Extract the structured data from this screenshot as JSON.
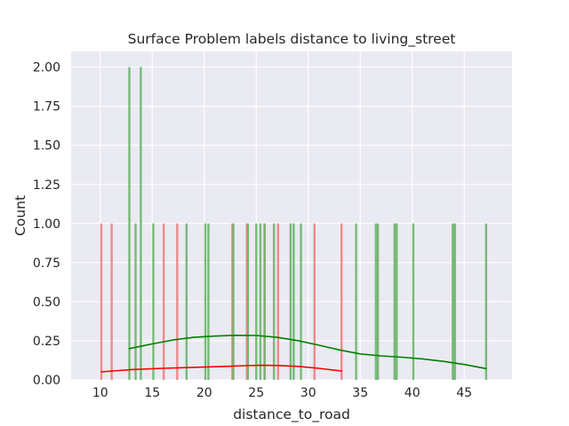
{
  "chart_data": {
    "type": "histogram",
    "title": "Surface Problem labels distance to living_street",
    "xlabel": "distance_to_road",
    "ylabel": "Count",
    "xlim": [
      7.2,
      49.6
    ],
    "ylim": [
      0,
      2.1
    ],
    "x_ticks": [
      "10",
      "15",
      "20",
      "25",
      "30",
      "35",
      "40",
      "45"
    ],
    "y_ticks": [
      "0.00",
      "0.25",
      "0.50",
      "0.75",
      "1.00",
      "1.25",
      "1.50",
      "1.75",
      "2.00"
    ],
    "grid": true,
    "legend": "none",
    "series": [
      {
        "color": "#e8575a",
        "bar_color": "#f08080",
        "bars": [
          {
            "x": 10.1,
            "count": 1
          },
          {
            "x": 11.1,
            "count": 1
          },
          {
            "x": 16.1,
            "count": 1
          },
          {
            "x": 17.4,
            "count": 1
          },
          {
            "x": 22.7,
            "count": 1
          },
          {
            "x": 24.1,
            "count": 1
          },
          {
            "x": 25.8,
            "count": 1
          },
          {
            "x": 27.1,
            "count": 1
          },
          {
            "x": 30.6,
            "count": 1
          },
          {
            "x": 33.2,
            "count": 1
          }
        ],
        "kde_color": "#ff0000",
        "kde": [
          [
            10.1,
            0.051
          ],
          [
            13,
            0.066
          ],
          [
            16,
            0.074
          ],
          [
            19,
            0.08
          ],
          [
            22,
            0.086
          ],
          [
            24,
            0.091
          ],
          [
            25.5,
            0.093
          ],
          [
            27,
            0.092
          ],
          [
            29,
            0.086
          ],
          [
            31,
            0.074
          ],
          [
            33.2,
            0.056
          ]
        ]
      },
      {
        "color": "#4caf50",
        "bar_color": "#6ab46a",
        "bars": [
          {
            "x": 12.8,
            "count": 2
          },
          {
            "x": 13.4,
            "count": 1
          },
          {
            "x": 13.9,
            "count": 2
          },
          {
            "x": 15.1,
            "count": 1
          },
          {
            "x": 18.3,
            "count": 1
          },
          {
            "x": 20.1,
            "count": 1
          },
          {
            "x": 20.4,
            "count": 1
          },
          {
            "x": 22.8,
            "count": 1
          },
          {
            "x": 24.2,
            "count": 1
          },
          {
            "x": 25.0,
            "count": 1
          },
          {
            "x": 25.4,
            "count": 1
          },
          {
            "x": 25.8,
            "count": 1
          },
          {
            "x": 26.7,
            "count": 1
          },
          {
            "x": 28.3,
            "count": 1
          },
          {
            "x": 28.6,
            "count": 1
          },
          {
            "x": 29.3,
            "count": 1
          },
          {
            "x": 34.6,
            "count": 1
          },
          {
            "x": 36.5,
            "count": 1
          },
          {
            "x": 36.7,
            "count": 1
          },
          {
            "x": 38.3,
            "count": 1
          },
          {
            "x": 38.5,
            "count": 1
          },
          {
            "x": 40.1,
            "count": 1
          },
          {
            "x": 43.9,
            "count": 1
          },
          {
            "x": 44.1,
            "count": 1
          },
          {
            "x": 47.1,
            "count": 1
          }
        ],
        "kde_color": "#008000",
        "kde": [
          [
            12.8,
            0.2
          ],
          [
            15,
            0.23
          ],
          [
            17,
            0.255
          ],
          [
            19,
            0.272
          ],
          [
            21,
            0.28
          ],
          [
            23,
            0.285
          ],
          [
            25,
            0.284
          ],
          [
            27,
            0.272
          ],
          [
            29,
            0.251
          ],
          [
            31,
            0.222
          ],
          [
            33,
            0.191
          ],
          [
            35,
            0.166
          ],
          [
            37,
            0.153
          ],
          [
            39,
            0.145
          ],
          [
            41,
            0.134
          ],
          [
            43,
            0.118
          ],
          [
            45,
            0.098
          ],
          [
            47.1,
            0.072
          ]
        ]
      }
    ]
  }
}
